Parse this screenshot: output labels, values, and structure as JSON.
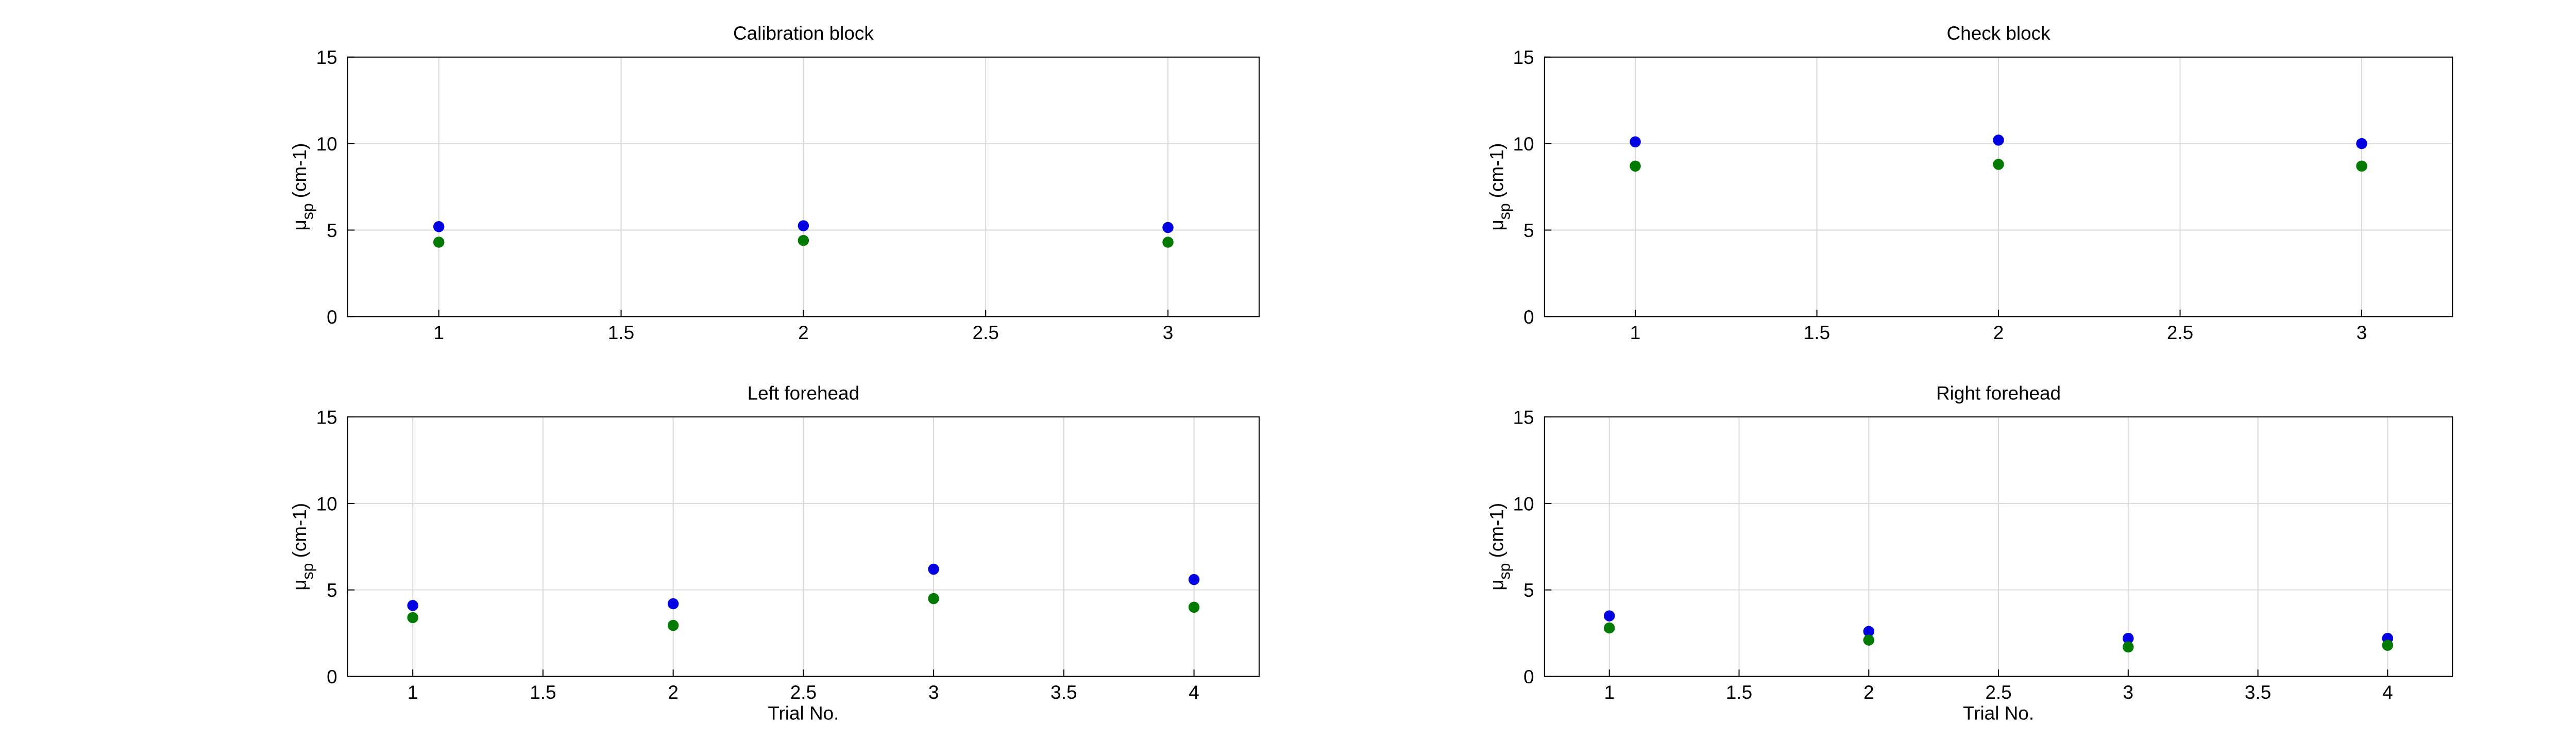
{
  "chart_data": [
    {
      "type": "scatter",
      "title": "Calibration block",
      "ylabel_symbol": "μ",
      "ylabel_subscript": "sp",
      "ylabel_unit": "(cm-1)",
      "x": [
        1,
        2,
        3
      ],
      "series": [
        {
          "color": "#0000e0",
          "values": [
            5.2,
            5.25,
            5.15
          ]
        },
        {
          "color": "#007a00",
          "values": [
            4.3,
            4.4,
            4.3
          ]
        }
      ],
      "xlim": [
        0.75,
        3.25
      ],
      "xticks": [
        1,
        1.5,
        2,
        2.5,
        3
      ],
      "ylim": [
        0,
        15
      ],
      "yticks": [
        0,
        5,
        10,
        15
      ],
      "grid": true
    },
    {
      "type": "scatter",
      "title": "Check block",
      "ylabel_symbol": "μ",
      "ylabel_subscript": "sp",
      "ylabel_unit": "(cm-1)",
      "x": [
        1,
        2,
        3
      ],
      "series": [
        {
          "color": "#0000e0",
          "values": [
            10.1,
            10.2,
            10.0
          ]
        },
        {
          "color": "#007a00",
          "values": [
            8.7,
            8.8,
            8.7
          ]
        }
      ],
      "xlim": [
        0.75,
        3.25
      ],
      "xticks": [
        1,
        1.5,
        2,
        2.5,
        3
      ],
      "ylim": [
        0,
        15
      ],
      "yticks": [
        0,
        5,
        10,
        15
      ],
      "grid": true
    },
    {
      "type": "scatter",
      "title": "Left forehead",
      "ylabel_symbol": "μ",
      "ylabel_subscript": "sp",
      "ylabel_unit": "(cm-1)",
      "xlabel": "Trial No.",
      "x": [
        1,
        2,
        3,
        4
      ],
      "series": [
        {
          "color": "#0000e0",
          "values": [
            4.1,
            4.2,
            6.2,
            5.6
          ]
        },
        {
          "color": "#007a00",
          "values": [
            3.4,
            2.95,
            4.5,
            4.0
          ]
        }
      ],
      "xlim": [
        0.75,
        4.25
      ],
      "xticks": [
        1,
        1.5,
        2,
        2.5,
        3,
        3.5,
        4
      ],
      "ylim": [
        0,
        15
      ],
      "yticks": [
        0,
        5,
        10,
        15
      ],
      "grid": true
    },
    {
      "type": "scatter",
      "title": "Right forehead",
      "ylabel_symbol": "μ",
      "ylabel_subscript": "sp",
      "ylabel_unit": "(cm-1)",
      "xlabel": "Trial No.",
      "x": [
        1,
        2,
        3,
        4
      ],
      "series": [
        {
          "color": "#0000e0",
          "values": [
            3.5,
            2.6,
            2.2,
            2.2
          ]
        },
        {
          "color": "#007a00",
          "values": [
            2.8,
            2.1,
            1.7,
            1.8
          ]
        }
      ],
      "xlim": [
        0.75,
        4.25
      ],
      "xticks": [
        1,
        1.5,
        2,
        2.5,
        3,
        3.5,
        4
      ],
      "ylim": [
        0,
        15
      ],
      "yticks": [
        0,
        5,
        10,
        15
      ],
      "grid": true
    }
  ]
}
